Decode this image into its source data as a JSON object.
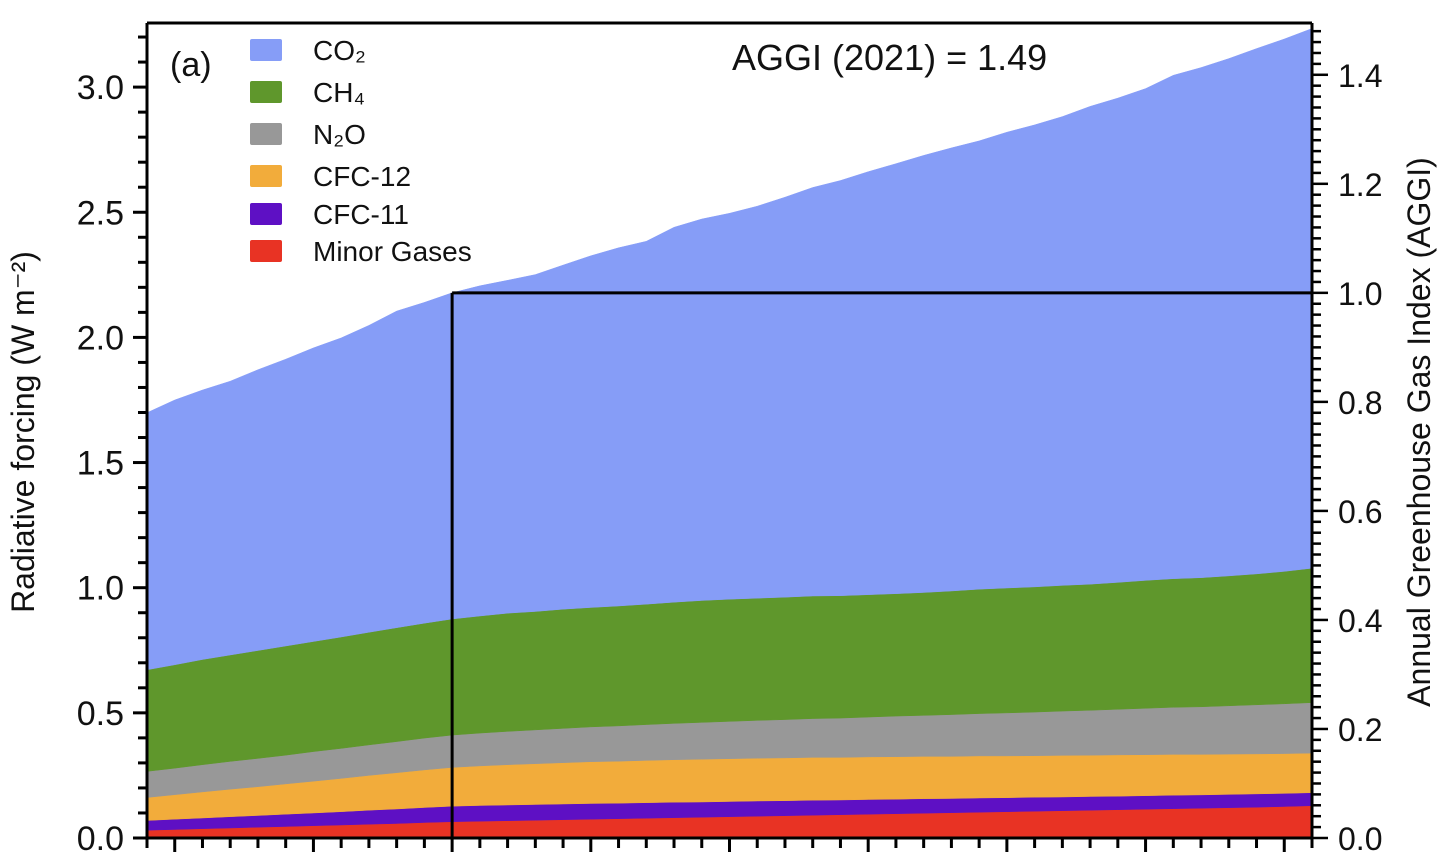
{
  "chart_data": {
    "type": "area",
    "stacked": true,
    "panel_label": "(a)",
    "annotation": "AGGI (2021) = 1.49",
    "ylabel": "Radiative forcing (W m⁻²)",
    "ylabel_right": "Annual Greenhouse Gas Index (AGGI)",
    "xlabel": "",
    "xlim": [
      1979,
      2021
    ],
    "ylim": [
      0,
      3.26
    ],
    "ylim_right": [
      0,
      1.49
    ],
    "yticks_left": [
      "0.0",
      "0.5",
      "1.0",
      "1.5",
      "2.0",
      "2.5",
      "3.0"
    ],
    "yticks_right": [
      "0.0",
      "0.2",
      "0.4",
      "0.6",
      "0.8",
      "1.0",
      "1.2",
      "1.4"
    ],
    "reference_year": 1990,
    "legend_position": "top-left",
    "x": [
      1979,
      1980,
      1981,
      1982,
      1983,
      1984,
      1985,
      1986,
      1987,
      1988,
      1989,
      1990,
      1991,
      1992,
      1993,
      1994,
      1995,
      1996,
      1997,
      1998,
      1999,
      2000,
      2001,
      2002,
      2003,
      2004,
      2005,
      2006,
      2007,
      2008,
      2009,
      2010,
      2011,
      2012,
      2013,
      2014,
      2015,
      2016,
      2017,
      2018,
      2019,
      2020,
      2021
    ],
    "series": [
      {
        "name": "Minor Gases",
        "color": "#e83324",
        "values": [
          0.031,
          0.034,
          0.037,
          0.04,
          0.043,
          0.046,
          0.049,
          0.052,
          0.055,
          0.058,
          0.062,
          0.065,
          0.067,
          0.069,
          0.071,
          0.073,
          0.075,
          0.077,
          0.079,
          0.081,
          0.083,
          0.085,
          0.087,
          0.089,
          0.091,
          0.093,
          0.095,
          0.097,
          0.099,
          0.101,
          0.103,
          0.105,
          0.107,
          0.109,
          0.111,
          0.113,
          0.115,
          0.117,
          0.119,
          0.121,
          0.123,
          0.126,
          0.129
        ]
      },
      {
        "name": "CFC-11",
        "color": "#5e10c4",
        "values": [
          0.039,
          0.041,
          0.043,
          0.045,
          0.047,
          0.049,
          0.051,
          0.053,
          0.056,
          0.058,
          0.06,
          0.062,
          0.063,
          0.063,
          0.063,
          0.063,
          0.063,
          0.062,
          0.062,
          0.062,
          0.061,
          0.061,
          0.061,
          0.06,
          0.06,
          0.059,
          0.059,
          0.058,
          0.058,
          0.057,
          0.057,
          0.056,
          0.056,
          0.055,
          0.055,
          0.054,
          0.054,
          0.054,
          0.053,
          0.053,
          0.053,
          0.052,
          0.052
        ]
      },
      {
        "name": "CFC-12",
        "color": "#f2ac3b",
        "values": [
          0.092,
          0.098,
          0.104,
          0.11,
          0.115,
          0.121,
          0.127,
          0.133,
          0.139,
          0.145,
          0.15,
          0.155,
          0.158,
          0.161,
          0.163,
          0.165,
          0.167,
          0.168,
          0.169,
          0.17,
          0.171,
          0.171,
          0.171,
          0.171,
          0.171,
          0.17,
          0.17,
          0.17,
          0.169,
          0.168,
          0.168,
          0.167,
          0.166,
          0.166,
          0.165,
          0.165,
          0.164,
          0.163,
          0.162,
          0.161,
          0.16,
          0.159,
          0.158
        ]
      },
      {
        "name": "N₂O",
        "color": "#989898",
        "values": [
          0.104,
          0.106,
          0.109,
          0.111,
          0.113,
          0.115,
          0.118,
          0.12,
          0.122,
          0.124,
          0.127,
          0.129,
          0.131,
          0.133,
          0.135,
          0.137,
          0.139,
          0.141,
          0.143,
          0.145,
          0.147,
          0.149,
          0.151,
          0.153,
          0.155,
          0.157,
          0.159,
          0.162,
          0.164,
          0.167,
          0.169,
          0.172,
          0.174,
          0.177,
          0.179,
          0.182,
          0.185,
          0.188,
          0.19,
          0.193,
          0.196,
          0.199,
          0.202
        ]
      },
      {
        "name": "CH₄",
        "color": "#5f972c",
        "values": [
          0.406,
          0.413,
          0.42,
          0.425,
          0.431,
          0.436,
          0.44,
          0.445,
          0.45,
          0.455,
          0.459,
          0.464,
          0.468,
          0.472,
          0.473,
          0.476,
          0.477,
          0.479,
          0.481,
          0.484,
          0.487,
          0.488,
          0.488,
          0.489,
          0.49,
          0.489,
          0.489,
          0.489,
          0.491,
          0.494,
          0.497,
          0.499,
          0.5,
          0.502,
          0.504,
          0.507,
          0.511,
          0.514,
          0.516,
          0.519,
          0.523,
          0.529,
          0.537
        ]
      },
      {
        "name": "CO₂",
        "color": "#869df7",
        "values": [
          1.027,
          1.058,
          1.077,
          1.094,
          1.122,
          1.146,
          1.173,
          1.195,
          1.226,
          1.265,
          1.282,
          1.303,
          1.319,
          1.33,
          1.346,
          1.375,
          1.405,
          1.431,
          1.45,
          1.498,
          1.524,
          1.542,
          1.566,
          1.598,
          1.632,
          1.659,
          1.69,
          1.718,
          1.746,
          1.77,
          1.791,
          1.821,
          1.846,
          1.873,
          1.909,
          1.935,
          1.965,
          2.011,
          2.038,
          2.067,
          2.099,
          2.127,
          2.156
        ]
      }
    ],
    "legend": [
      {
        "label": "CO₂",
        "color": "#869df7"
      },
      {
        "label": "CH₄",
        "color": "#5f972c"
      },
      {
        "label": "N₂O",
        "color": "#989898"
      },
      {
        "label": "CFC-12",
        "color": "#f2ac3b"
      },
      {
        "label": "CFC-11",
        "color": "#5e10c4"
      },
      {
        "label": "Minor Gases",
        "color": "#e83324"
      }
    ]
  }
}
